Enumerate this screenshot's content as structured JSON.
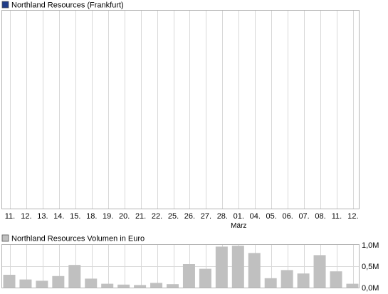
{
  "colors": {
    "background": "#ffffff",
    "grid": "#d8d8d8",
    "frame": "#b3b3b3",
    "price_swatch": "#1f3c88",
    "volume_bar": "#c0c0c0",
    "volume_swatch": "#c0c0c0",
    "text": "#000000"
  },
  "chart_data": [
    {
      "type": "line",
      "legend": "Northland Resources (Frankfurt)",
      "categories": [
        "11.",
        "12.",
        "13.",
        "14.",
        "15.",
        "18.",
        "19.",
        "20.",
        "21.",
        "22.",
        "25.",
        "26.",
        "27.",
        "28.",
        "01.",
        "04.",
        "05.",
        "06.",
        "07.",
        "08.",
        "11.",
        "12."
      ],
      "month_marker": {
        "index": 14,
        "label": "März"
      },
      "series": [],
      "grid": true
    },
    {
      "type": "bar",
      "legend": "Northland Resources Volumen in Euro",
      "ytick_labels": [
        "1,0M",
        "0,5M",
        "0,0M"
      ],
      "ytick_values": [
        1000000,
        500000,
        0
      ],
      "ylim": [
        0,
        1000000
      ],
      "values": [
        300000,
        190000,
        160000,
        270000,
        530000,
        210000,
        90000,
        70000,
        60000,
        110000,
        80000,
        550000,
        440000,
        960000,
        980000,
        810000,
        220000,
        410000,
        330000,
        760000,
        380000,
        90000
      ],
      "grid": true
    }
  ]
}
